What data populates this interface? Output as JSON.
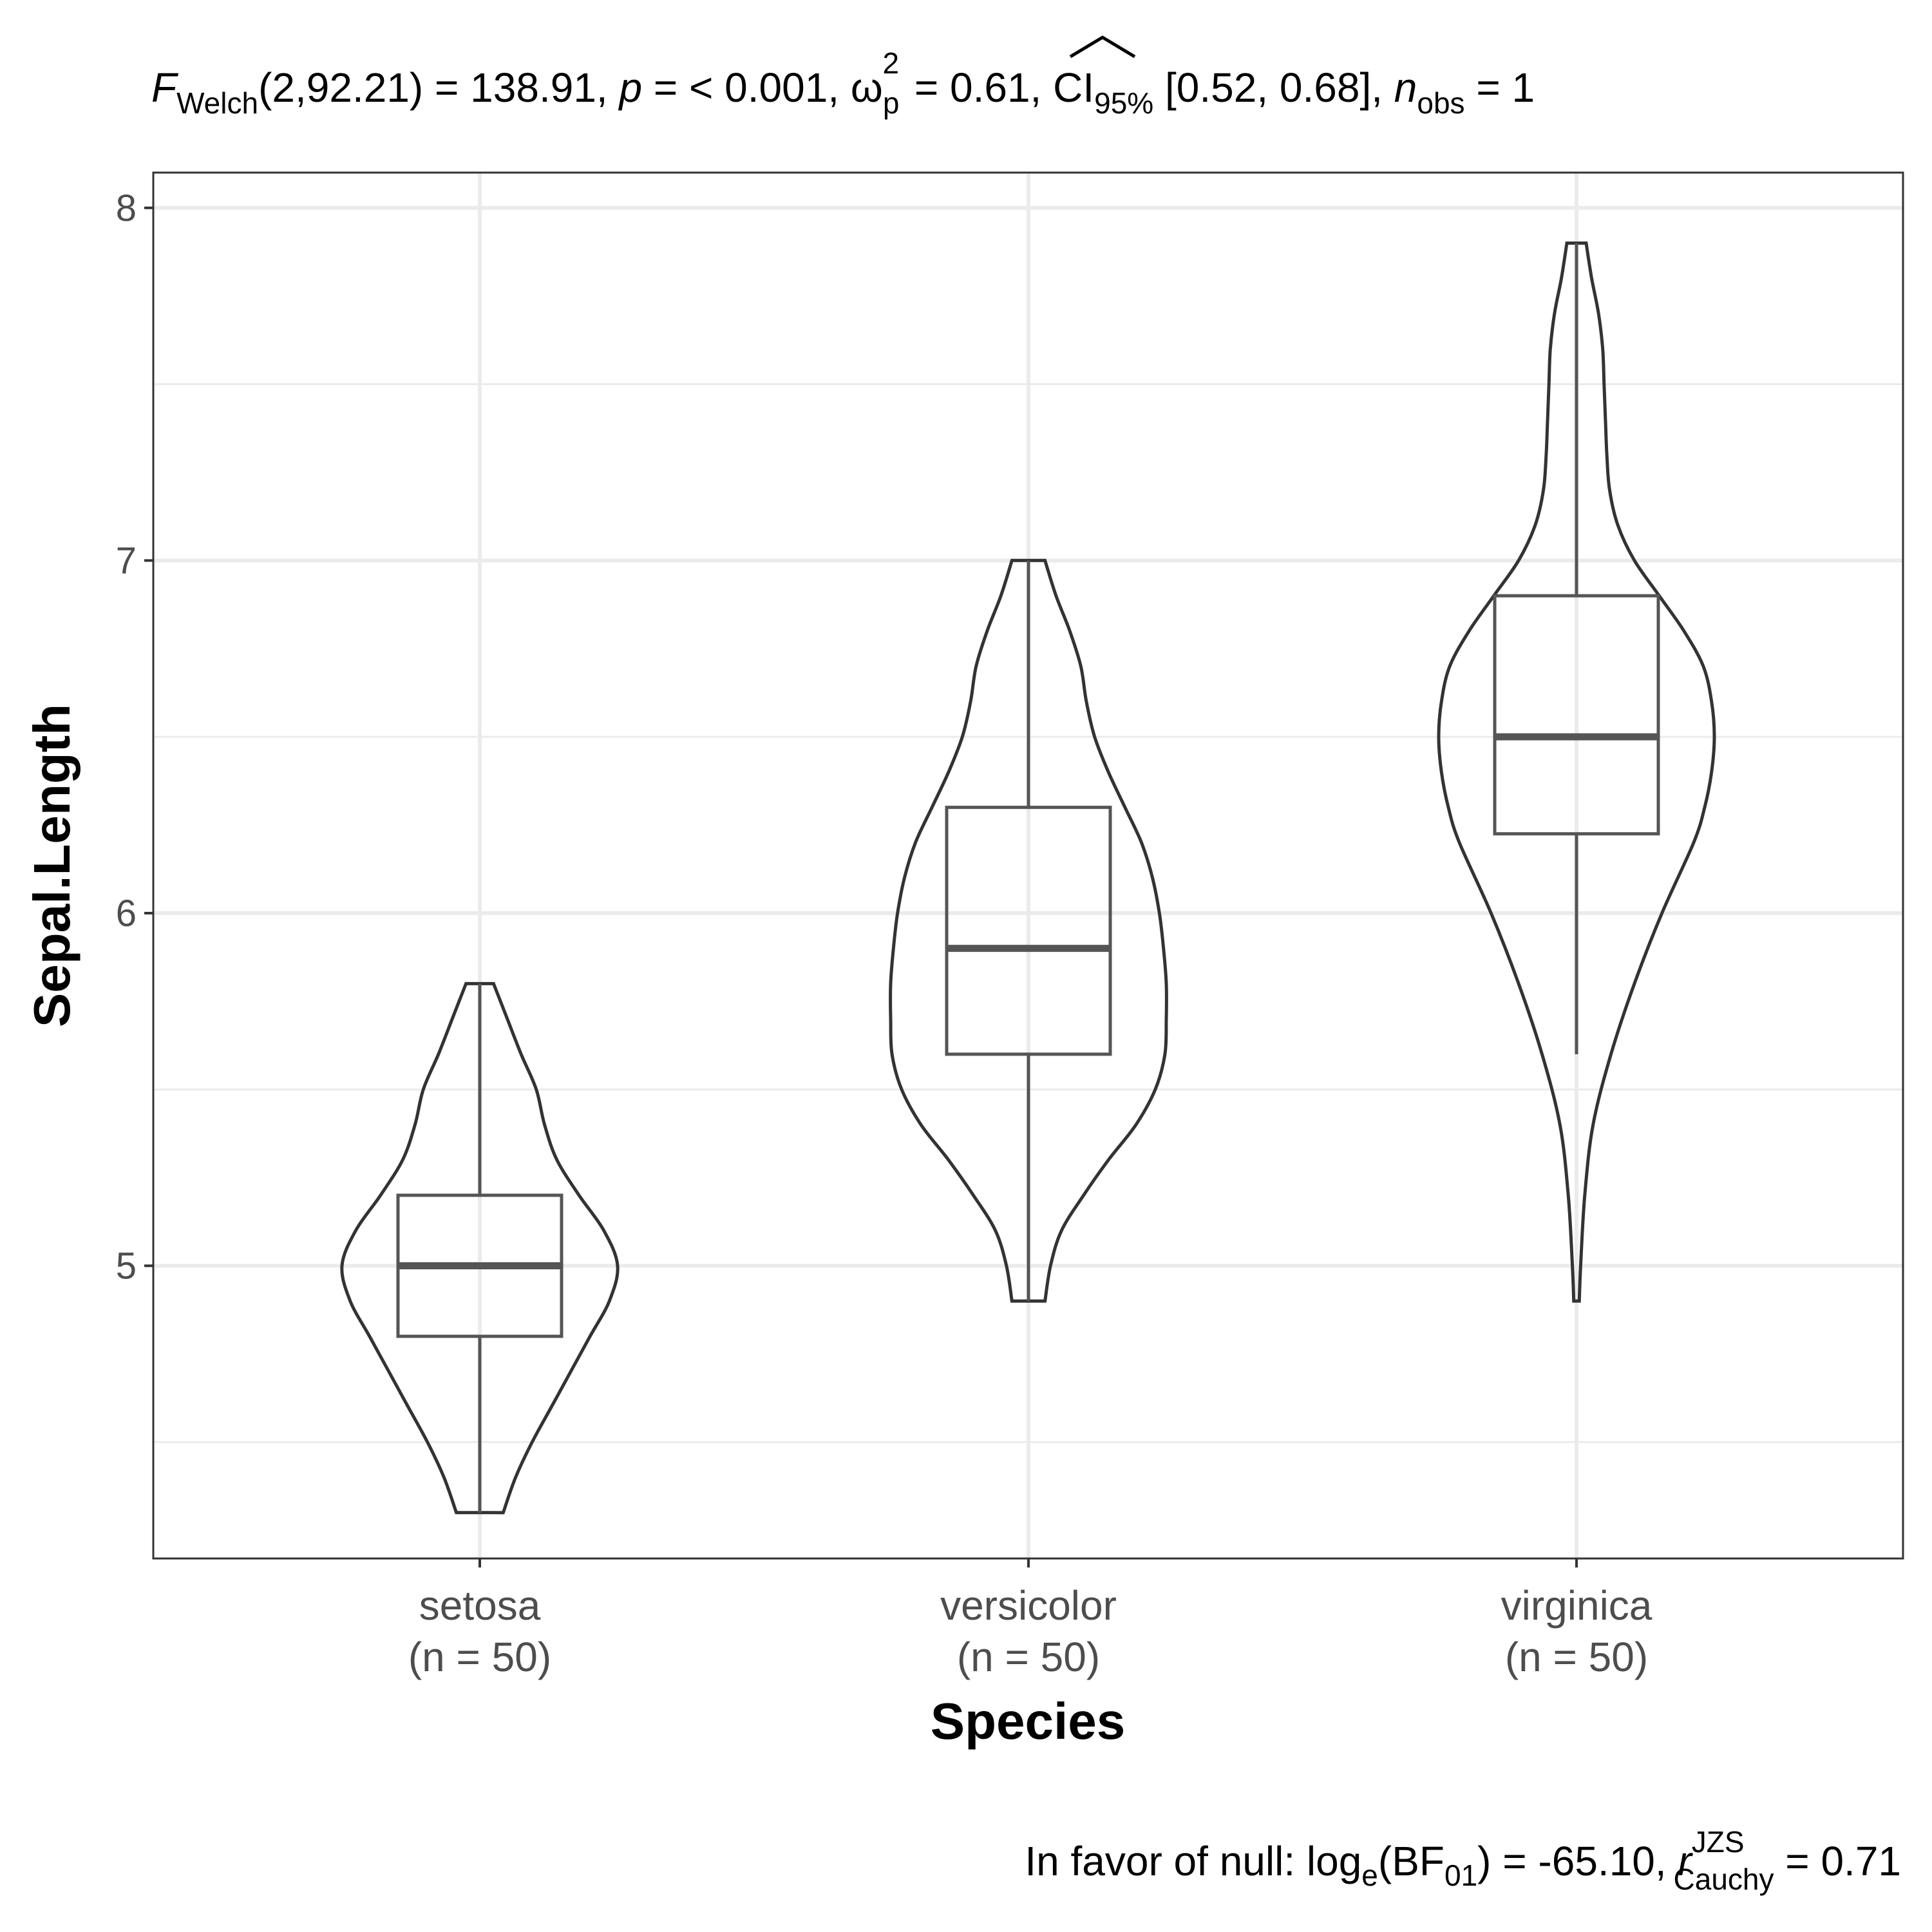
{
  "chart_data": {
    "type": "violin-box",
    "subtitle": {
      "statistic_symbol": "F",
      "statistic_subscript": "Welch",
      "df": "(2,92.21)",
      "statistic_value": "138.91",
      "p_label": "p",
      "p_text": "< 0.001",
      "effect_symbol": "ω",
      "effect_subscript": "p",
      "effect_superscript": "2",
      "effect_value": "0.61",
      "ci_label": "CI",
      "ci_subscript": "95%",
      "ci_text": "[0.52, 0.68]",
      "n_label": "n",
      "n_subscript": "obs",
      "n_value_visible": "1"
    },
    "caption": {
      "prefix": "In favor of null: log",
      "log_subscript": "e",
      "bf_label": "(BF",
      "bf_subscript": "01",
      "bf_value": ") = -65.10,",
      "r_symbol": "r",
      "r_superscript": "JZS",
      "r_subscript": "Cauchy",
      "r_value": "= 0.71"
    },
    "xlabel": "Species",
    "ylabel": "Sepal.Length",
    "ylim": [
      4.17,
      8.1
    ],
    "y_ticks": [
      5,
      6,
      7,
      8
    ],
    "y_tick_labels": [
      "5",
      "6",
      "7",
      "8"
    ],
    "grid": true,
    "categories": [
      "setosa",
      "versicolor",
      "virginica"
    ],
    "category_counts": [
      "(n = 50)",
      "(n = 50)",
      "(n = 50)"
    ],
    "groups": [
      {
        "name": "setosa",
        "min": 4.3,
        "q1": 4.8,
        "median": 5.0,
        "q3": 5.2,
        "max": 5.8,
        "whisker_low": 4.3,
        "whisker_high": 5.8,
        "density": [
          [
            4.3,
            0.17
          ],
          [
            4.4,
            0.26
          ],
          [
            4.5,
            0.38
          ],
          [
            4.6,
            0.52
          ],
          [
            4.7,
            0.66
          ],
          [
            4.8,
            0.8
          ],
          [
            4.9,
            0.94
          ],
          [
            5.0,
            1.0
          ],
          [
            5.1,
            0.9
          ],
          [
            5.2,
            0.72
          ],
          [
            5.3,
            0.56
          ],
          [
            5.4,
            0.47
          ],
          [
            5.5,
            0.41
          ],
          [
            5.6,
            0.3
          ],
          [
            5.7,
            0.2
          ],
          [
            5.8,
            0.1
          ]
        ]
      },
      {
        "name": "versicolor",
        "min": 4.9,
        "q1": 5.6,
        "median": 5.9,
        "q3": 6.3,
        "max": 7.0,
        "whisker_low": 4.9,
        "whisker_high": 7.0,
        "density": [
          [
            4.9,
            0.12
          ],
          [
            5.0,
            0.16
          ],
          [
            5.1,
            0.24
          ],
          [
            5.2,
            0.4
          ],
          [
            5.3,
            0.58
          ],
          [
            5.4,
            0.78
          ],
          [
            5.5,
            0.92
          ],
          [
            5.6,
            0.99
          ],
          [
            5.7,
            1.0
          ],
          [
            5.8,
            1.0
          ],
          [
            5.9,
            0.98
          ],
          [
            6.0,
            0.95
          ],
          [
            6.1,
            0.9
          ],
          [
            6.2,
            0.82
          ],
          [
            6.3,
            0.7
          ],
          [
            6.4,
            0.58
          ],
          [
            6.5,
            0.48
          ],
          [
            6.6,
            0.42
          ],
          [
            6.7,
            0.38
          ],
          [
            6.8,
            0.3
          ],
          [
            6.9,
            0.2
          ],
          [
            7.0,
            0.12
          ]
        ]
      },
      {
        "name": "virginica",
        "min": 4.9,
        "q1": 6.225,
        "median": 6.5,
        "q3": 6.9,
        "max": 7.9,
        "whisker_low": 5.6,
        "whisker_high": 7.9,
        "density": [
          [
            4.9,
            0.02
          ],
          [
            5.0,
            0.03
          ],
          [
            5.2,
            0.06
          ],
          [
            5.4,
            0.12
          ],
          [
            5.6,
            0.25
          ],
          [
            5.8,
            0.42
          ],
          [
            6.0,
            0.62
          ],
          [
            6.2,
            0.85
          ],
          [
            6.3,
            0.93
          ],
          [
            6.4,
            0.98
          ],
          [
            6.5,
            1.0
          ],
          [
            6.6,
            0.98
          ],
          [
            6.7,
            0.92
          ],
          [
            6.8,
            0.78
          ],
          [
            6.9,
            0.6
          ],
          [
            7.0,
            0.42
          ],
          [
            7.1,
            0.3
          ],
          [
            7.2,
            0.24
          ],
          [
            7.3,
            0.22
          ],
          [
            7.4,
            0.21
          ],
          [
            7.5,
            0.2
          ],
          [
            7.6,
            0.19
          ],
          [
            7.7,
            0.16
          ],
          [
            7.8,
            0.11
          ],
          [
            7.9,
            0.07
          ]
        ]
      }
    ],
    "colors": {
      "violin": "#333333",
      "box": "#555555",
      "panel_border": "#333333",
      "grid": "#ebebeb"
    }
  }
}
